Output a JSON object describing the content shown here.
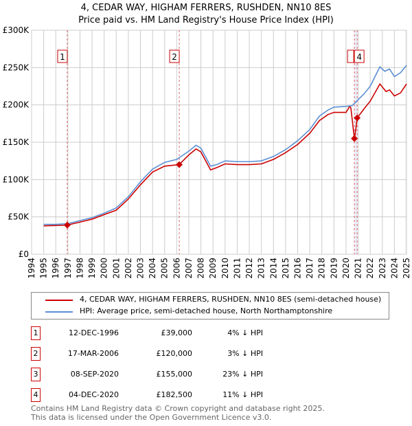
{
  "title": "4, CEDAR WAY, HIGHAM FERRERS, RUSHDEN, NN10 8ES",
  "subtitle": "Price paid vs. HM Land Registry's House Price Index (HPI)",
  "chart_data": {
    "type": "line",
    "xlim": [
      1994,
      2025
    ],
    "ylim": [
      0,
      300000
    ],
    "x_ticks": [
      "1994",
      "1995",
      "1996",
      "1997",
      "1998",
      "1999",
      "2000",
      "2001",
      "2002",
      "2003",
      "2004",
      "2005",
      "2006",
      "2007",
      "2008",
      "2009",
      "2010",
      "2011",
      "2012",
      "2013",
      "2014",
      "2015",
      "2016",
      "2017",
      "2018",
      "2019",
      "2020",
      "2021",
      "2022",
      "2023",
      "2024",
      "2025"
    ],
    "y_ticks": [
      {
        "v": 0,
        "l": "£0"
      },
      {
        "v": 50000,
        "l": "£50K"
      },
      {
        "v": 100000,
        "l": "£100K"
      },
      {
        "v": 150000,
        "l": "£150K"
      },
      {
        "v": 200000,
        "l": "£200K"
      },
      {
        "v": 250000,
        "l": "£250K"
      },
      {
        "v": 300000,
        "l": "£300K"
      }
    ],
    "series": [
      {
        "name": "HPI: Average price, semi-detached house, North Northamptonshire",
        "color": "#5b8fd4",
        "x": [
          1995,
          1996,
          1997,
          1998,
          1999,
          2000,
          2001,
          2002,
          2003,
          2004,
          2005,
          2006,
          2007,
          2007.6,
          2008,
          2008.8,
          2009.3,
          2010,
          2011,
          2012,
          2013,
          2014,
          2015,
          2016,
          2017,
          2017.8,
          2018.5,
          2019,
          2020,
          2020.5,
          2021,
          2021.5,
          2022,
          2022.8,
          2023.2,
          2023.6,
          2024,
          2024.5,
          2025
        ],
        "y": [
          40000,
          40000,
          41000,
          45000,
          49000,
          55000,
          62000,
          77000,
          97000,
          114000,
          123000,
          127000,
          138000,
          146000,
          142000,
          118000,
          120000,
          125000,
          124000,
          124000,
          125000,
          131000,
          140000,
          152000,
          167000,
          185000,
          193000,
          197000,
          198000,
          199000,
          207000,
          215000,
          225000,
          251000,
          245000,
          248000,
          238000,
          243000,
          253000
        ]
      },
      {
        "name": "4, CEDAR WAY, HIGHAM FERRERS, RUSHDEN, NN10 8ES (semi-detached house)",
        "color": "#cc0000",
        "x": [
          1995,
          1996,
          1996.95,
          1998,
          1999,
          2000,
          2001,
          2002,
          2003,
          2004,
          2005,
          2006.2,
          2007,
          2007.6,
          2008,
          2008.8,
          2009.3,
          2010,
          2011,
          2012,
          2013,
          2014,
          2015,
          2016,
          2017,
          2017.8,
          2018.5,
          2019,
          2020,
          2020.3,
          2020.4,
          2020.69,
          2020.75,
          2020.92,
          2021.5,
          2022,
          2022.8,
          2023.3,
          2023.6,
          2024,
          2024.5,
          2025
        ],
        "y": [
          38000,
          38500,
          39000,
          43000,
          47000,
          53000,
          59000,
          74000,
          93000,
          110000,
          118000,
          120000,
          133000,
          141000,
          137000,
          113000,
          116000,
          121000,
          120000,
          120000,
          121000,
          127000,
          136000,
          147000,
          162000,
          179000,
          187000,
          190000,
          190000,
          198000,
          196000,
          155000,
          160000,
          182500,
          195000,
          205000,
          228000,
          218000,
          220000,
          212000,
          216000,
          228000
        ]
      }
    ],
    "sales": [
      {
        "label": "1",
        "x": 1996.95,
        "y": 39000
      },
      {
        "label": "2",
        "x": 2006.21,
        "y": 120000
      },
      {
        "label": "3",
        "x": 2020.69,
        "y": 155000
      },
      {
        "label": "4",
        "x": 2020.92,
        "y": 182500
      }
    ]
  },
  "legend": {
    "property": "4, CEDAR WAY, HIGHAM FERRERS, RUSHDEN, NN10 8ES (semi-detached house)",
    "hpi": "HPI: Average price, semi-detached house, North Northamptonshire"
  },
  "table": [
    {
      "n": "1",
      "date": "12-DEC-1996",
      "price": "£39,000",
      "diff": "4% ↓ HPI"
    },
    {
      "n": "2",
      "date": "17-MAR-2006",
      "price": "£120,000",
      "diff": "3% ↓ HPI"
    },
    {
      "n": "3",
      "date": "08-SEP-2020",
      "price": "£155,000",
      "diff": "23% ↓ HPI"
    },
    {
      "n": "4",
      "date": "04-DEC-2020",
      "price": "£182,500",
      "diff": "11% ↓ HPI"
    }
  ],
  "footer": [
    "Contains HM Land Registry data © Crown copyright and database right 2025.",
    "This data is licensed under the Open Government Licence v3.0."
  ]
}
